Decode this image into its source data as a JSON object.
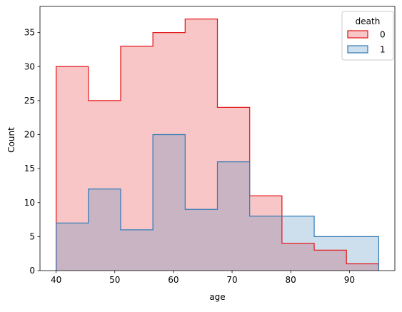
{
  "chart_data": {
    "type": "histogram",
    "title": "",
    "xlabel": "age",
    "ylabel": "Count",
    "xlim": [
      37.25,
      97.75
    ],
    "ylim": [
      0,
      38.85
    ],
    "xticks": [
      40,
      50,
      60,
      70,
      80,
      90
    ],
    "yticks": [
      0,
      5,
      10,
      15,
      20,
      25,
      30,
      35
    ],
    "bin_edges": [
      40,
      45.5,
      51,
      56.5,
      62,
      67.5,
      73,
      78.5,
      84,
      89.5,
      95
    ],
    "series": [
      {
        "name": "0",
        "values": [
          30,
          25,
          33,
          35,
          37,
          24,
          11,
          4,
          3,
          1
        ],
        "edge_color": "#e41a1c",
        "fill_color": "#e41a1c",
        "fill_opacity": 0.25
      },
      {
        "name": "1",
        "values": [
          7,
          12,
          6,
          20,
          9,
          16,
          8,
          8,
          5,
          5
        ],
        "edge_color": "#377eb8",
        "fill_color": "#377eb8",
        "fill_opacity": 0.25
      }
    ],
    "legend": {
      "title": "death",
      "position": "top-right"
    },
    "grid": false
  }
}
